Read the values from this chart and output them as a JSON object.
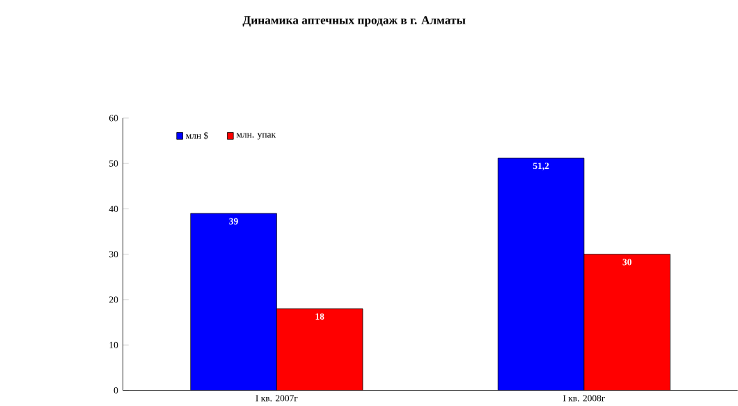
{
  "chart_data": {
    "type": "bar",
    "title": "Динамика аптечных продаж в г. Алматы",
    "categories": [
      "I кв. 2007г",
      "I кв. 2008г"
    ],
    "series": [
      {
        "name": "млн $",
        "color": "#0000ff",
        "values": [
          39,
          51.2
        ],
        "value_labels": [
          "39",
          "51,2"
        ]
      },
      {
        "name": "млн. упак",
        "color": "#ff0000",
        "values": [
          18,
          30
        ],
        "value_labels": [
          "18",
          "30"
        ]
      }
    ],
    "ylim": [
      0,
      60
    ],
    "yticks": [
      0,
      10,
      20,
      30,
      40,
      50,
      60
    ],
    "grid": false,
    "legend": "top left"
  }
}
